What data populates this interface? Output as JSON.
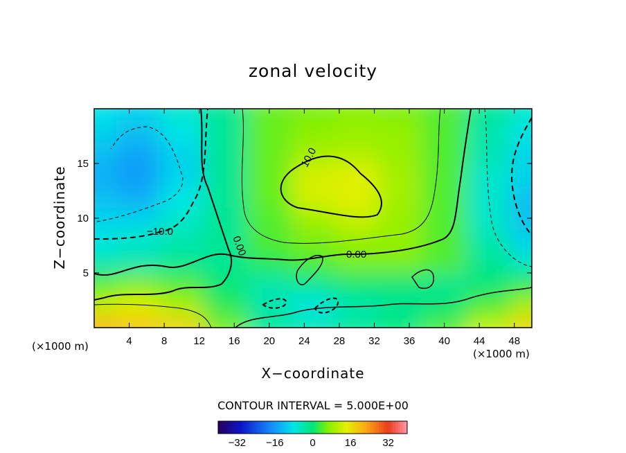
{
  "chart_data": {
    "type": "heatmap",
    "title": "zonal velocity",
    "xlabel": "X−coordinate",
    "ylabel": "Z−coordinate",
    "x_unit_left": "(×1000 m)",
    "x_unit_right": "(×1000 m)",
    "xlim": [
      0,
      50
    ],
    "ylim": [
      0,
      20
    ],
    "xticks": [
      4,
      8,
      12,
      16,
      20,
      24,
      28,
      32,
      36,
      40,
      44,
      48
    ],
    "yticks": [
      5,
      10,
      15
    ],
    "contour_interval_text": "CONTOUR INTERVAL = 5.000E+00",
    "contour_labels": [
      "10.0",
      "−10.0",
      "0.00",
      "0.00"
    ],
    "colorbar": {
      "range": [
        -40,
        40
      ],
      "ticks": [
        "−32",
        "−16",
        "0",
        "16",
        "32"
      ]
    },
    "field_description_grid": {
      "x": [
        0,
        5,
        10,
        15,
        20,
        25,
        30,
        35,
        40,
        45,
        50
      ],
      "z": [
        0,
        2,
        4,
        6,
        8,
        10,
        12,
        14,
        16,
        18,
        20
      ],
      "values": [
        [
          22,
          20,
          18,
          6,
          -2,
          -4,
          -2,
          0,
          4,
          12,
          18
        ],
        [
          12,
          14,
          10,
          2,
          -4,
          -8,
          -4,
          -2,
          0,
          4,
          10
        ],
        [
          4,
          6,
          4,
          0,
          -4,
          -2,
          0,
          0,
          -2,
          0,
          2
        ],
        [
          -4,
          -4,
          -2,
          -2,
          2,
          4,
          6,
          6,
          4,
          -2,
          -6
        ],
        [
          -8,
          -6,
          -4,
          -2,
          4,
          6,
          8,
          8,
          4,
          -4,
          -10
        ],
        [
          -10,
          -10,
          -6,
          -2,
          4,
          9,
          12,
          8,
          4,
          -6,
          -12
        ],
        [
          -12,
          -14,
          -8,
          -2,
          5,
          13,
          14,
          9,
          4,
          -6,
          -12
        ],
        [
          -14,
          -16,
          -10,
          -2,
          5,
          13,
          14,
          9,
          4,
          -6,
          -10
        ],
        [
          -12,
          -15,
          -10,
          -2,
          5,
          9,
          10,
          8,
          4,
          -4,
          -10
        ],
        [
          -10,
          -12,
          -8,
          -2,
          5,
          7,
          8,
          8,
          4,
          -4,
          -8
        ],
        [
          -8,
          -10,
          -6,
          -2,
          5,
          6,
          7,
          6,
          4,
          -2,
          -6
        ]
      ]
    }
  }
}
